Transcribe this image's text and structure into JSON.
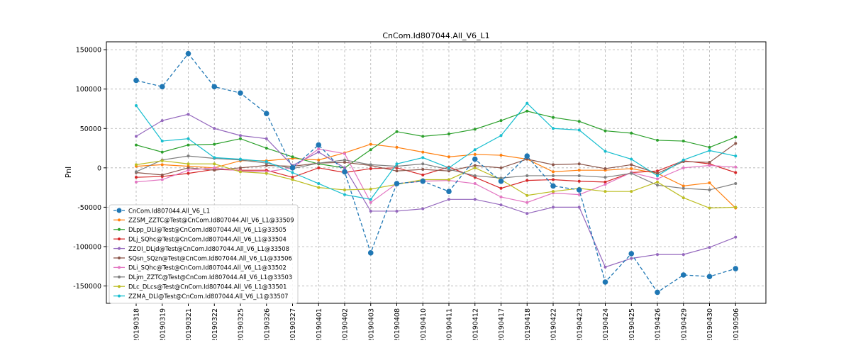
{
  "chart_data": {
    "type": "line",
    "title": "CnCom.Id807044.All_V6_L1",
    "xlabel": "",
    "ylabel": "Pnl",
    "ylim": [
      -172000,
      160000
    ],
    "yticks": [
      -150000,
      -100000,
      -50000,
      0,
      50000,
      100000,
      150000
    ],
    "grid": true,
    "legend_position": "lower-left",
    "x": [
      "20190318",
      "20190319",
      "20190321",
      "20190322",
      "20190325",
      "20190326",
      "20190327",
      "20190401",
      "20190402",
      "20190403",
      "20190408",
      "20190410",
      "20190411",
      "20190412",
      "20190417",
      "20190418",
      "20190422",
      "20190423",
      "20190424",
      "20190425",
      "20190426",
      "20190429",
      "20190430",
      "20190506"
    ],
    "series": [
      {
        "name": "CnCom.Id807044.All_V6_L1",
        "color": "#1f77b4",
        "dashed": true,
        "marker": "large",
        "values": [
          111000,
          103000,
          145000,
          103000,
          95000,
          69000,
          0,
          29000,
          -5000,
          -108000,
          -20000,
          -17000,
          -30000,
          11000,
          -17000,
          15000,
          -23000,
          -28000,
          -145000,
          -109000,
          -158000,
          -136000,
          -138000,
          -128000
        ]
      },
      {
        "name": "ZZSM_ZZTC@Test@CnCom.Id807044.All_V6_L1@33509",
        "color": "#ff7f0e",
        "values": [
          2000,
          4000,
          2000,
          0,
          9000,
          9000,
          12000,
          10000,
          19000,
          30000,
          26000,
          20000,
          14000,
          17000,
          16000,
          11000,
          -5000,
          -3000,
          -3000,
          -1000,
          -7000,
          -23000,
          -19000,
          -51000
        ]
      },
      {
        "name": "DLpp_DLl@Test@CnCom.Id807044.All_V6_L1@33505",
        "color": "#2ca02c",
        "values": [
          29000,
          20000,
          29000,
          30000,
          37000,
          25000,
          14000,
          5000,
          0,
          23000,
          46000,
          40000,
          43000,
          49000,
          60000,
          72000,
          64000,
          59000,
          47000,
          44000,
          35000,
          34000,
          26000,
          39000
        ]
      },
      {
        "name": "DLj_SQhc@Test@CnCom.Id807044.All_V6_L1@33504",
        "color": "#d62728",
        "values": [
          -12000,
          -11000,
          -7000,
          -2000,
          -3000,
          -3000,
          -12000,
          0,
          -6000,
          -1000,
          0,
          -9000,
          1000,
          -12000,
          -26000,
          -16000,
          -15000,
          -17000,
          -18000,
          -6000,
          -4000,
          9000,
          5000,
          -6000
        ]
      },
      {
        "name": "ZZOI_DLjd@Test@CnCom.Id807044.All_V6_L1@33508",
        "color": "#9467bd",
        "values": [
          40000,
          60000,
          68000,
          50000,
          41000,
          37000,
          3000,
          20000,
          0,
          -55000,
          -55000,
          -52000,
          -40000,
          -40000,
          -47000,
          -58000,
          -50000,
          -50000,
          -126000,
          -115000,
          -110000,
          -110000,
          -101000,
          -88000
        ]
      },
      {
        "name": "SQsn_SQzn@Test@CnCom.Id807044.All_V6_L1@33506",
        "color": "#8c564b",
        "values": [
          -6000,
          -9000,
          0,
          -3000,
          0,
          3000,
          2000,
          6000,
          7000,
          3000,
          -4000,
          -2000,
          -4000,
          3000,
          0,
          11000,
          4000,
          5000,
          -1000,
          4000,
          -7000,
          8000,
          7000,
          31000
        ]
      },
      {
        "name": "DLi_SQhc@Test@CnCom.Id807044.All_V6_L1@33502",
        "color": "#e377c2",
        "values": [
          -18000,
          -15000,
          -3000,
          0,
          -4000,
          -5000,
          0,
          24000,
          18000,
          -44000,
          -20000,
          -17000,
          -16000,
          -20000,
          -37000,
          -44000,
          -32000,
          -34000,
          -21000,
          -6000,
          -14000,
          0,
          3000,
          1000
        ]
      },
      {
        "name": "DLjm_ZZTC@Test@CnCom.Id807044.All_V6_L1@33503",
        "color": "#7f7f7f",
        "values": [
          -5000,
          10000,
          15000,
          12000,
          10000,
          6000,
          -1000,
          6000,
          10000,
          4000,
          2000,
          5000,
          -2000,
          -10000,
          -13000,
          -10000,
          -10000,
          -10000,
          -12000,
          -7000,
          -22000,
          -26000,
          -28000,
          -20000
        ]
      },
      {
        "name": "DLc_DLcs@Test@CnCom.Id807044.All_V6_L1@33501",
        "color": "#bcbd22",
        "values": [
          4000,
          9000,
          5000,
          5000,
          -5000,
          -7000,
          -15000,
          -25000,
          -28000,
          -27000,
          -21000,
          -15000,
          -15000,
          0,
          -15000,
          -35000,
          -30000,
          -26000,
          -30000,
          -30000,
          -18000,
          -38000,
          -51000,
          -50000
        ]
      },
      {
        "name": "ZZMA_DLl@Test@CnCom.Id807044.All_V6_L1@33507",
        "color": "#17becf",
        "values": [
          79000,
          34000,
          37000,
          13000,
          11000,
          8000,
          -6000,
          -20000,
          -34000,
          -40000,
          5000,
          13000,
          0,
          23000,
          41000,
          82000,
          50000,
          48000,
          21000,
          11000,
          -10000,
          10000,
          22000,
          15000
        ]
      }
    ]
  }
}
